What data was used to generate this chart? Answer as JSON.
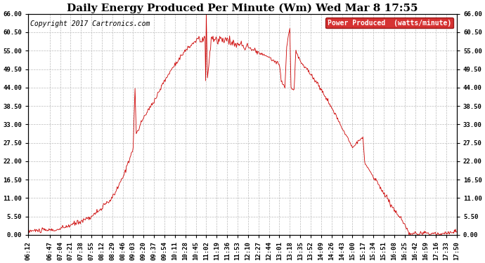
{
  "title": "Daily Energy Produced Per Minute (Wm) Wed Mar 8 17:55",
  "copyright": "Copyright 2017 Cartronics.com",
  "legend_label": "Power Produced  (watts/minute)",
  "legend_bg": "#cc0000",
  "legend_text_color": "#ffffff",
  "line_color": "#cc0000",
  "bg_color": "#ffffff",
  "grid_color": "#bbbbbb",
  "yticks": [
    0.0,
    5.5,
    11.0,
    16.5,
    22.0,
    27.5,
    33.0,
    38.5,
    44.0,
    49.5,
    55.0,
    60.5,
    66.0
  ],
  "ymin": 0.0,
  "ymax": 66.0,
  "xtick_labels": [
    "06:12",
    "06:47",
    "07:04",
    "07:21",
    "07:38",
    "07:55",
    "08:12",
    "08:29",
    "08:46",
    "09:03",
    "09:20",
    "09:37",
    "09:54",
    "10:11",
    "10:28",
    "10:45",
    "11:02",
    "11:19",
    "11:36",
    "11:53",
    "12:10",
    "12:27",
    "12:44",
    "13:01",
    "13:18",
    "13:35",
    "13:52",
    "14:09",
    "14:26",
    "14:43",
    "15:00",
    "15:17",
    "15:34",
    "15:51",
    "16:08",
    "16:25",
    "16:42",
    "16:59",
    "17:16",
    "17:33",
    "17:50"
  ],
  "title_fontsize": 11,
  "copyright_fontsize": 7,
  "legend_fontsize": 7,
  "tick_fontsize": 6.5
}
